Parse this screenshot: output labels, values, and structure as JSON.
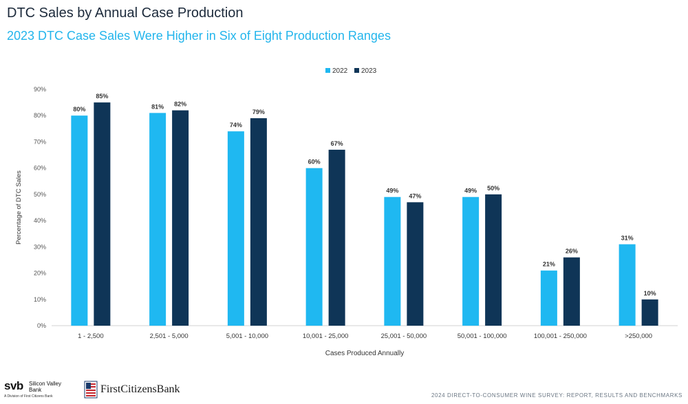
{
  "header": {
    "title": "DTC Sales by Annual Case Production",
    "subtitle": "2023 DTC Case Sales Were Higher in Six of Eight Production Ranges"
  },
  "colors": {
    "series_2022": "#1fb8f1",
    "series_2023": "#0f3557",
    "subtitle": "#23b5ec"
  },
  "chart_data": {
    "type": "bar",
    "categories": [
      "1 - 2,500",
      "2,501 - 5,000",
      "5,001 - 10,000",
      "10,001 - 25,000",
      "25,001 - 50,000",
      "50,001 - 100,000",
      "100,001 - 250,000",
      ">250,000"
    ],
    "series": [
      {
        "name": "2022",
        "values": [
          80,
          81,
          74,
          60,
          49,
          49,
          21,
          31
        ],
        "labels": [
          "80%",
          "81%",
          "74%",
          "60%",
          "49%",
          "49%",
          "21%",
          "31%"
        ]
      },
      {
        "name": "2023",
        "values": [
          85,
          82,
          79,
          67,
          47,
          50,
          26,
          10
        ],
        "labels": [
          "85%",
          "82%",
          "79%",
          "67%",
          "47%",
          "50%",
          "26%",
          "10%"
        ]
      }
    ],
    "xlabel": "Cases Produced Annually",
    "ylabel": "Percentage of DTC Sales",
    "ylim": [
      0,
      90
    ],
    "yticks": [
      "0%",
      "10%",
      "20%",
      "30%",
      "40%",
      "50%",
      "60%",
      "70%",
      "80%",
      "90%"
    ],
    "grid": false,
    "legend_position": "top-center"
  },
  "footer": {
    "svb_logo": "svb",
    "svb_name": "Silicon Valley Bank",
    "svb_tagline": "A Division of First Citizens Bank",
    "fcb_name": "FirstCitizensBank",
    "survey_title": "2024 DIRECT-TO-CONSUMER WINE SURVEY: REPORT, RESULTS AND BENCHMARKS"
  }
}
